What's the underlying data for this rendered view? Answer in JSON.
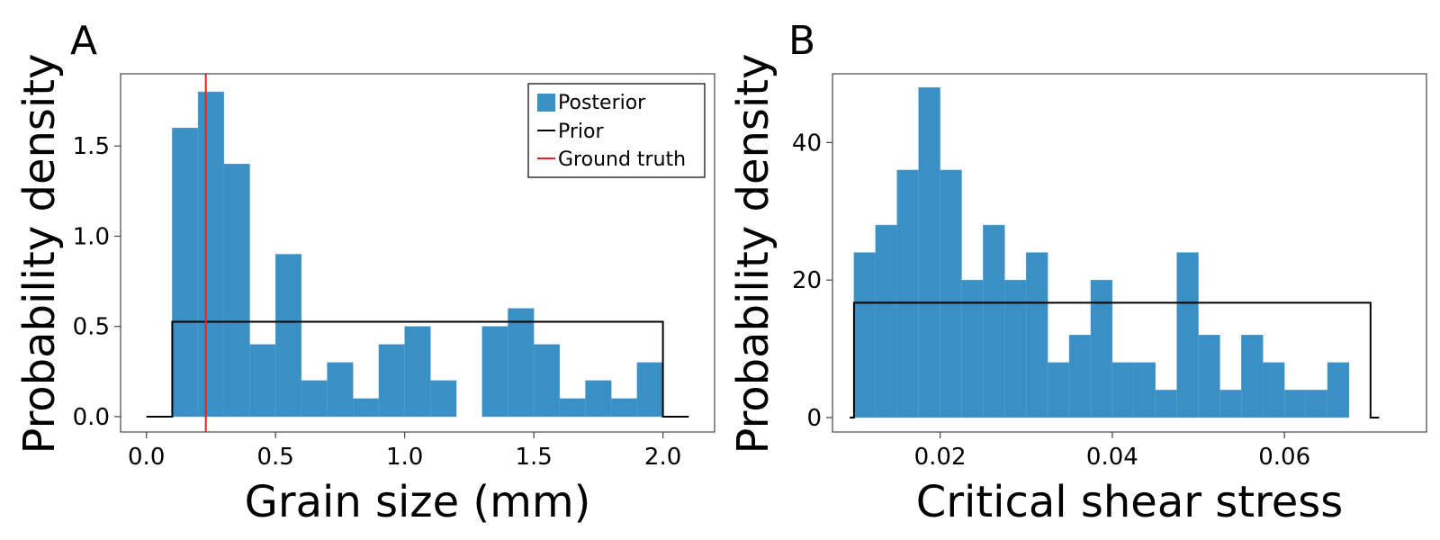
{
  "chart_data": [
    {
      "panel_label": "A",
      "type": "bar",
      "title": "",
      "xlabel": "Grain size (mm)",
      "ylabel": "Probability density",
      "xlim": [
        -0.1,
        2.2
      ],
      "ylim": [
        -0.085,
        1.9
      ],
      "xticks": [
        0.0,
        0.5,
        1.0,
        1.5,
        2.0
      ],
      "xtick_labels": [
        "0.0",
        "0.5",
        "1.0",
        "1.5",
        "2.0"
      ],
      "yticks": [
        0.0,
        0.5,
        1.0,
        1.5
      ],
      "ytick_labels": [
        "0.0",
        "0.5",
        "1.0",
        "1.5"
      ],
      "series": [
        {
          "name": "Posterior",
          "kind": "histogram",
          "color": "#3a8fc4",
          "bin_edges": [
            0.1,
            0.2,
            0.3,
            0.4,
            0.5,
            0.6,
            0.7,
            0.8,
            0.9,
            1.0,
            1.1,
            1.2,
            1.3,
            1.4,
            1.5,
            1.6,
            1.7,
            1.8,
            1.9,
            2.0
          ],
          "values": [
            1.6,
            1.8,
            1.4,
            0.4,
            0.9,
            0.2,
            0.3,
            0.1,
            0.4,
            0.5,
            0.2,
            0,
            0.5,
            0.6,
            0.4,
            0.1,
            0.2,
            0.1,
            0.3
          ]
        },
        {
          "name": "Prior",
          "kind": "line",
          "color": "#000000",
          "x": [
            0.0,
            0.1,
            0.1,
            2.0,
            2.0,
            2.1
          ],
          "y": [
            0.0,
            0.0,
            0.526,
            0.526,
            0.0,
            0.0
          ]
        },
        {
          "name": "Ground truth",
          "kind": "vline",
          "color": "#e8221b",
          "x": 0.23
        }
      ],
      "legend": {
        "position": "top-right",
        "entries": [
          {
            "label": "Posterior",
            "kind": "patch",
            "color": "#3a8fc4"
          },
          {
            "label": "Prior",
            "kind": "line",
            "color": "#000000"
          },
          {
            "label": "Ground truth",
            "kind": "line",
            "color": "#e8221b"
          }
        ]
      }
    },
    {
      "panel_label": "B",
      "type": "bar",
      "title": "",
      "xlabel": "Critical shear stress",
      "ylabel": "Probability density",
      "xlim": [
        0.0075,
        0.0765
      ],
      "ylim": [
        -2.1,
        50
      ],
      "xticks": [
        0.02,
        0.04,
        0.06
      ],
      "xtick_labels": [
        "0.02",
        "0.04",
        "0.06"
      ],
      "yticks": [
        0,
        20,
        40
      ],
      "ytick_labels": [
        "0",
        "20",
        "40"
      ],
      "series": [
        {
          "name": "Posterior",
          "kind": "histogram",
          "color": "#3a8fc4",
          "bin_start": 0.01,
          "bin_width": 0.0025,
          "values": [
            24,
            28,
            36,
            48,
            36,
            20,
            28,
            20,
            24,
            8,
            12,
            20,
            8,
            8,
            4,
            24,
            12,
            4,
            12,
            8,
            4,
            4,
            8
          ]
        },
        {
          "name": "Prior",
          "kind": "line",
          "color": "#000000",
          "x": [
            0.0095,
            0.01,
            0.01,
            0.07,
            0.07,
            0.071
          ],
          "y": [
            0,
            0,
            16.7,
            16.7,
            0,
            0
          ]
        }
      ]
    }
  ]
}
